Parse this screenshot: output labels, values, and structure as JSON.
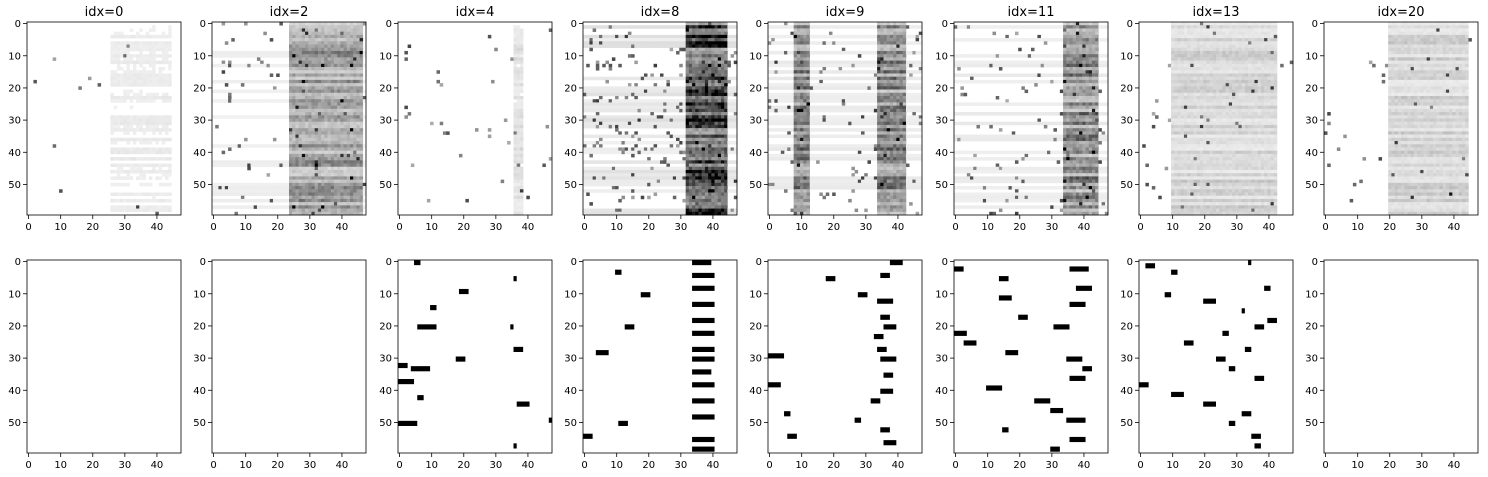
{
  "chart_data": {
    "type": "heatmap",
    "layout": "2 rows x 8 columns of image panels",
    "colormap": "grayscale (white = low, black = high)",
    "image_size": {
      "rows": 60,
      "cols": 48
    },
    "xticks": [
      "0",
      "10",
      "20",
      "30",
      "40"
    ],
    "yticks": [
      "0",
      "10",
      "20",
      "30",
      "40",
      "50"
    ],
    "columns": [
      {
        "title": "idx=0",
        "top": {
          "kind": "grayscale",
          "density": 0.05,
          "bands": [
            [
              26,
              44
            ]
          ]
        },
        "bottom": {
          "kind": "binary",
          "marks": []
        }
      },
      {
        "title": "idx=2",
        "top": {
          "kind": "grayscale",
          "density": 0.35,
          "bands": [
            [
              24,
              46
            ]
          ]
        },
        "bottom": {
          "kind": "binary",
          "marks": []
        }
      },
      {
        "title": "idx=4",
        "top": {
          "kind": "grayscale",
          "density": 0.1,
          "bands": [
            [
              36,
              38
            ]
          ]
        },
        "bottom": {
          "kind": "binary",
          "marks": [
            [
              0,
              5,
              2
            ],
            [
              5,
              36,
              1
            ],
            [
              9,
              19,
              3
            ],
            [
              14,
              10,
              2
            ],
            [
              20,
              6,
              6
            ],
            [
              20,
              35,
              1
            ],
            [
              27,
              36,
              3
            ],
            [
              30,
              18,
              3
            ],
            [
              32,
              0,
              3
            ],
            [
              33,
              4,
              6
            ],
            [
              37,
              0,
              5
            ],
            [
              42,
              6,
              2
            ],
            [
              44,
              37,
              4
            ],
            [
              49,
              47,
              1
            ],
            [
              50,
              0,
              6
            ],
            [
              57,
              36,
              1
            ]
          ]
        }
      },
      {
        "title": "idx=8",
        "top": {
          "kind": "grayscale",
          "density": 0.75,
          "bands": [
            [
              32,
              44
            ]
          ]
        },
        "bottom": {
          "kind": "binary",
          "marks": [
            [
              0,
              34,
              6
            ],
            [
              3,
              10,
              2
            ],
            [
              4,
              34,
              7
            ],
            [
              8,
              34,
              7
            ],
            [
              10,
              18,
              3
            ],
            [
              13,
              34,
              7
            ],
            [
              18,
              34,
              7
            ],
            [
              20,
              13,
              3
            ],
            [
              22,
              34,
              7
            ],
            [
              27,
              34,
              7
            ],
            [
              28,
              4,
              4
            ],
            [
              30,
              34,
              7
            ],
            [
              34,
              34,
              6
            ],
            [
              38,
              34,
              7
            ],
            [
              43,
              34,
              7
            ],
            [
              48,
              34,
              7
            ],
            [
              50,
              11,
              3
            ],
            [
              54,
              0,
              3
            ],
            [
              55,
              34,
              7
            ],
            [
              58,
              34,
              7
            ]
          ]
        }
      },
      {
        "title": "idx=9",
        "top": {
          "kind": "grayscale",
          "density": 0.45,
          "bands": [
            [
              8,
              12
            ],
            [
              34,
              42
            ]
          ]
        },
        "bottom": {
          "kind": "binary",
          "marks": [
            [
              0,
              38,
              4
            ],
            [
              4,
              35,
              3
            ],
            [
              5,
              18,
              3
            ],
            [
              10,
              28,
              3
            ],
            [
              12,
              34,
              5
            ],
            [
              17,
              35,
              3
            ],
            [
              20,
              36,
              4
            ],
            [
              23,
              33,
              3
            ],
            [
              27,
              34,
              3
            ],
            [
              29,
              0,
              5
            ],
            [
              30,
              35,
              5
            ],
            [
              35,
              36,
              3
            ],
            [
              38,
              0,
              4
            ],
            [
              40,
              35,
              4
            ],
            [
              43,
              32,
              3
            ],
            [
              47,
              5,
              2
            ],
            [
              49,
              27,
              2
            ],
            [
              52,
              35,
              3
            ],
            [
              54,
              6,
              3
            ],
            [
              56,
              36,
              4
            ]
          ]
        }
      },
      {
        "title": "idx=11",
        "top": {
          "kind": "grayscale",
          "density": 0.45,
          "bands": [
            [
              34,
              44
            ]
          ]
        },
        "bottom": {
          "kind": "binary",
          "marks": [
            [
              2,
              0,
              3
            ],
            [
              2,
              36,
              6
            ],
            [
              5,
              14,
              3
            ],
            [
              8,
              38,
              5
            ],
            [
              11,
              14,
              4
            ],
            [
              13,
              36,
              5
            ],
            [
              17,
              20,
              3
            ],
            [
              20,
              31,
              5
            ],
            [
              22,
              0,
              4
            ],
            [
              25,
              3,
              4
            ],
            [
              28,
              16,
              4
            ],
            [
              30,
              35,
              5
            ],
            [
              33,
              40,
              3
            ],
            [
              36,
              36,
              5
            ],
            [
              39,
              10,
              5
            ],
            [
              43,
              25,
              5
            ],
            [
              46,
              30,
              4
            ],
            [
              49,
              35,
              6
            ],
            [
              52,
              15,
              2
            ],
            [
              55,
              36,
              5
            ],
            [
              58,
              30,
              3
            ]
          ]
        }
      },
      {
        "title": "idx=13",
        "top": {
          "kind": "grayscale",
          "density": 0.15,
          "bands": [
            [
              10,
              42
            ]
          ]
        },
        "bottom": {
          "kind": "binary",
          "marks": [
            [
              0,
              34,
              1
            ],
            [
              1,
              2,
              3
            ],
            [
              3,
              10,
              2
            ],
            [
              8,
              39,
              2
            ],
            [
              10,
              8,
              2
            ],
            [
              12,
              20,
              4
            ],
            [
              15,
              32,
              1
            ],
            [
              18,
              40,
              3
            ],
            [
              20,
              36,
              3
            ],
            [
              22,
              26,
              2
            ],
            [
              25,
              14,
              3
            ],
            [
              27,
              33,
              2
            ],
            [
              30,
              24,
              3
            ],
            [
              33,
              28,
              2
            ],
            [
              36,
              36,
              3
            ],
            [
              38,
              0,
              3
            ],
            [
              41,
              10,
              4
            ],
            [
              44,
              20,
              4
            ],
            [
              47,
              32,
              3
            ],
            [
              50,
              28,
              2
            ],
            [
              54,
              35,
              3
            ],
            [
              57,
              36,
              2
            ]
          ]
        }
      },
      {
        "title": "idx=20",
        "top": {
          "kind": "grayscale",
          "density": 0.15,
          "bands": [
            [
              20,
              44
            ]
          ]
        },
        "bottom": {
          "kind": "binary",
          "marks": []
        }
      }
    ]
  }
}
